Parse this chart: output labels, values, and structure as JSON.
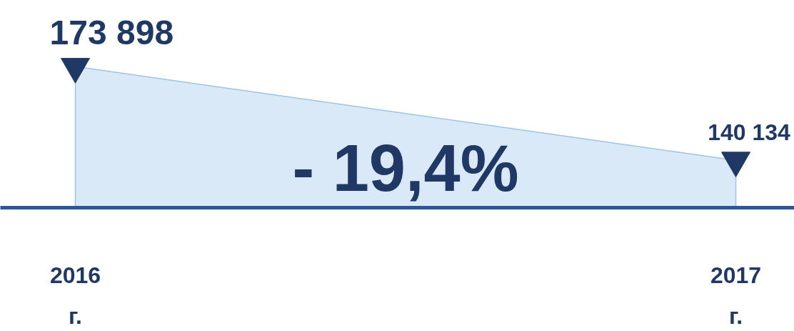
{
  "chart_data": {
    "type": "area",
    "categories": [
      "2016 г.",
      "2017 г."
    ],
    "series": [
      {
        "color": "#dae9f8",
        "values": [
          173898,
          140134
        ]
      }
    ],
    "data_labels": true,
    "value_labels": [
      "173 898",
      "140 134"
    ],
    "marker": "triangle",
    "annotations": [
      "- 19,4%"
    ],
    "grid": false
  }
}
